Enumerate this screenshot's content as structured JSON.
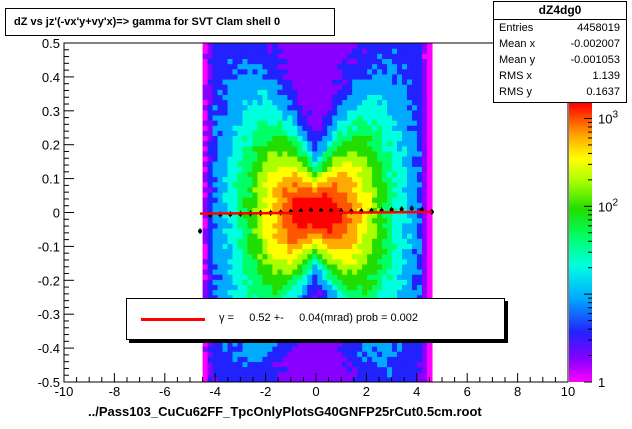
{
  "title": "dZ vs    jz'(-vx'y+vy'x)=> gamma for SVT Clam shell 0",
  "stats": {
    "name": "dZ4dg0",
    "rows": [
      {
        "key": "Entries",
        "value": "4458019"
      },
      {
        "key": "Mean x",
        "value": "-0.002007"
      },
      {
        "key": "Mean y",
        "value": "-0.001053"
      },
      {
        "key": "RMS x",
        "value": "1.139"
      },
      {
        "key": "RMS y",
        "value": "0.1637"
      }
    ]
  },
  "legend": {
    "label": "γ =     0.52 +-     0.04(mrad) prob = 0.002",
    "line_color": "#ff0000"
  },
  "colorbar": {
    "type": "log",
    "range": [
      1,
      1500
    ],
    "ticks": [
      {
        "base": "1",
        "exp": ""
      },
      {
        "base": "10",
        "exp": "2"
      },
      {
        "base": "10",
        "exp": "3"
      }
    ],
    "palette": [
      "#ff00ff",
      "#8800ff",
      "#2222ff",
      "#00aaff",
      "#00ffdd",
      "#00ff66",
      "#22dd00",
      "#aaff00",
      "#ffff00",
      "#ffaa00",
      "#ff5500",
      "#ff0000"
    ]
  },
  "chart_data": {
    "type": "heatmap",
    "title": "dZ vs    jz'(-vx'y+vy'x)=> gamma for SVT Clam shell 0",
    "xlabel": "../Pass103_CuCu62FF_TpcOnlyPlotsG40GNFP25rCut0.5cm.root",
    "ylabel": "",
    "xlim": [
      -10,
      10
    ],
    "ylim": [
      -0.5,
      0.5
    ],
    "x_ticks": [
      "-10",
      "-8",
      "-6",
      "-4",
      "-2",
      "0",
      "2",
      "4",
      "6",
      "8",
      "10"
    ],
    "y_ticks": [
      "-0.5",
      "-0.4",
      "-0.3",
      "-0.2",
      "-0.1",
      "0",
      "0.1",
      "0.2",
      "0.3",
      "0.4",
      "0.5"
    ],
    "x_values": [
      -10,
      -8,
      -6,
      -4,
      -2,
      0,
      2,
      4,
      6,
      8,
      10
    ],
    "y_values": [
      -0.5,
      -0.4,
      -0.3,
      -0.2,
      -0.1,
      0,
      0.1,
      0.2,
      0.3,
      0.4,
      0.5
    ],
    "density_extent": {
      "x": [
        -4.5,
        4.6
      ],
      "y": [
        -0.5,
        0.5
      ]
    },
    "profile": {
      "x": [
        -4.6,
        -4.2,
        -3.8,
        -3.4,
        -3.0,
        -2.6,
        -2.2,
        -1.8,
        -1.4,
        -1.0,
        -0.6,
        -0.2,
        0.2,
        0.6,
        1.0,
        1.4,
        1.8,
        2.2,
        2.6,
        3.0,
        3.4,
        3.8,
        4.2,
        4.6
      ],
      "y": [
        -0.055,
        -0.008,
        -0.006,
        -0.005,
        -0.004,
        -0.003,
        -0.002,
        -0.001,
        0.0,
        0.002,
        0.004,
        0.006,
        0.005,
        0.004,
        0.003,
        0.003,
        0.004,
        0.005,
        0.006,
        0.008,
        0.01,
        0.012,
        0.008,
        0.002
      ]
    },
    "fit": {
      "slope": 0.00052,
      "intercept": -0.001,
      "x_range": [
        -4.6,
        4.6
      ],
      "color": "#ff0000"
    }
  }
}
